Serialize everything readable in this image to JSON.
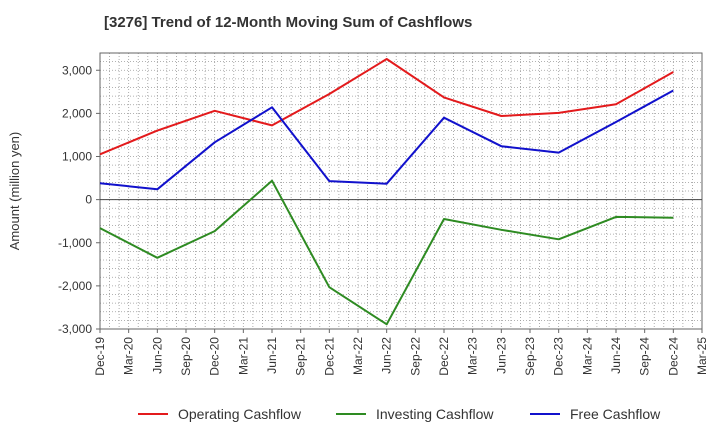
{
  "chart_data": {
    "type": "line",
    "title": "[3276]  Trend of 12-Month Moving Sum of Cashflows",
    "xlabel": "",
    "ylabel": "Amount (million yen)",
    "ylim": [
      -3000,
      3400
    ],
    "yticks": [
      3000,
      2000,
      1000,
      0,
      -1000,
      -2000,
      -3000
    ],
    "ytick_labels": [
      "3,000",
      "2,000",
      "1,000",
      "0",
      "-1,000",
      "-2,000",
      "-3,000"
    ],
    "categories": [
      "Dec-19",
      "Mar-20",
      "Jun-20",
      "Sep-20",
      "Dec-20",
      "Mar-21",
      "Jun-21",
      "Sep-21",
      "Dec-21",
      "Mar-22",
      "Jun-22",
      "Sep-22",
      "Dec-22",
      "Mar-23",
      "Jun-23",
      "Sep-23",
      "Dec-23",
      "Mar-24",
      "Jun-24",
      "Sep-24",
      "Dec-24",
      "Mar-25"
    ],
    "grid": true,
    "legend_position": "bottom",
    "series": [
      {
        "name": "Operating Cashflow",
        "color": "#e31a1c",
        "values": [
          1050,
          null,
          1600,
          null,
          2060,
          null,
          1720,
          null,
          2450,
          null,
          3260,
          null,
          2370,
          null,
          1940,
          null,
          2010,
          null,
          2210,
          null,
          2960,
          null
        ]
      },
      {
        "name": "Investing Cashflow",
        "color": "#2e8b22",
        "values": [
          -660,
          null,
          -1350,
          null,
          -730,
          null,
          440,
          null,
          -2030,
          null,
          -2890,
          null,
          -450,
          null,
          -700,
          null,
          -920,
          null,
          -400,
          null,
          -420,
          null
        ]
      },
      {
        "name": "Free Cashflow",
        "color": "#1111cc",
        "values": [
          380,
          null,
          240,
          null,
          1330,
          null,
          2140,
          null,
          430,
          null,
          370,
          null,
          1900,
          null,
          1240,
          null,
          1090,
          null,
          1800,
          null,
          2530,
          null
        ]
      }
    ]
  }
}
